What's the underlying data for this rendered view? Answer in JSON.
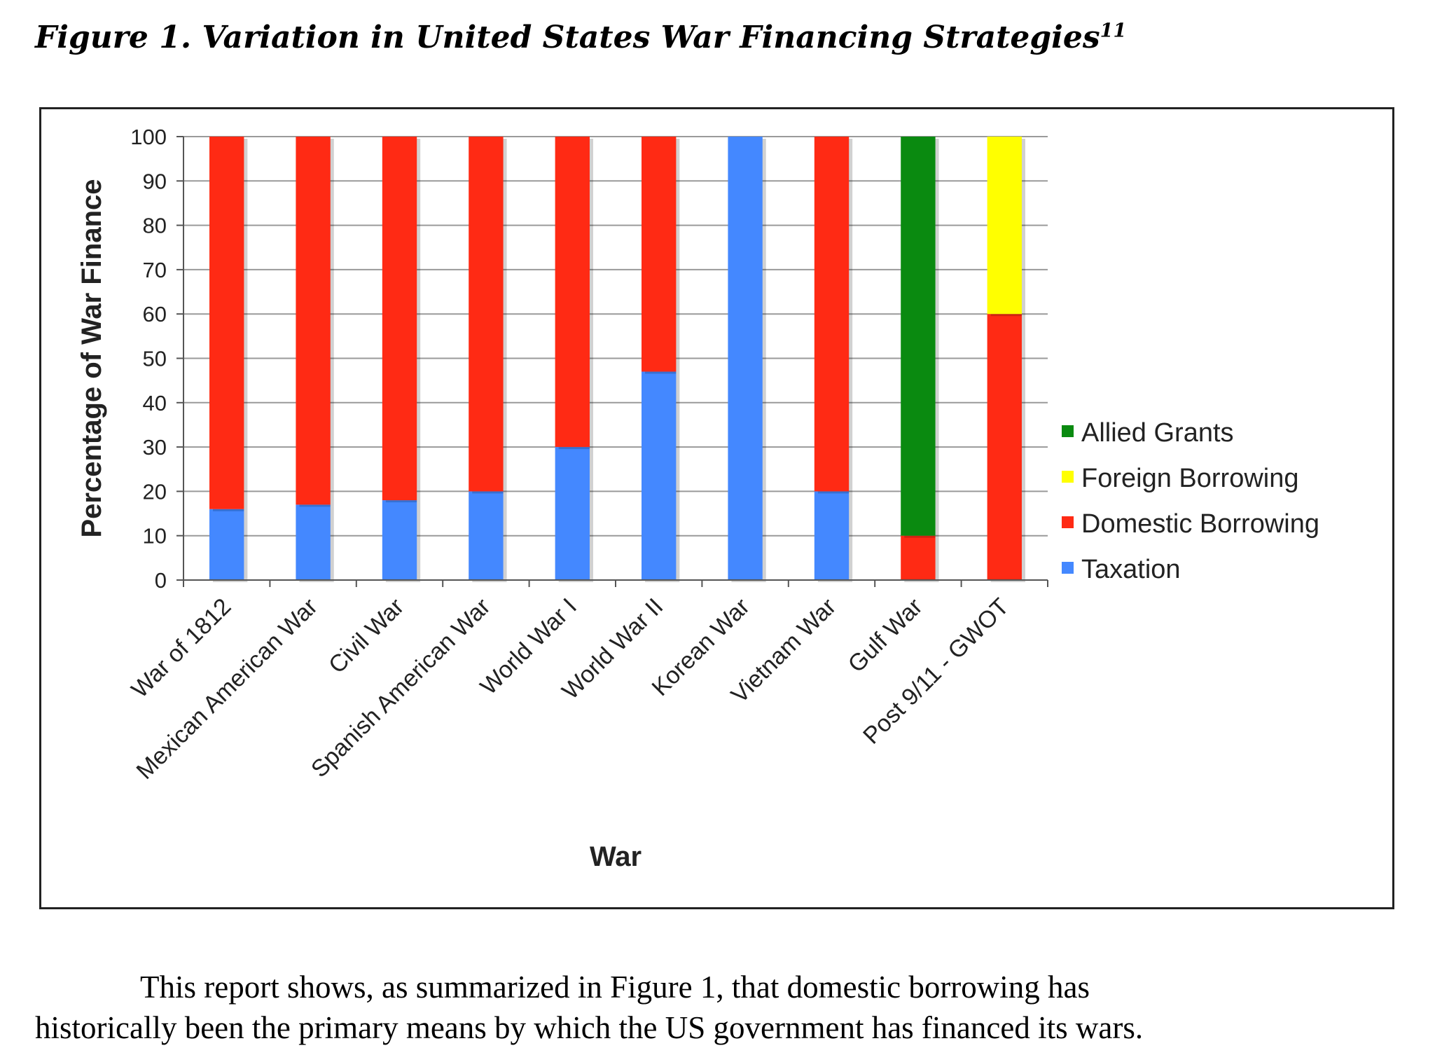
{
  "figure": {
    "title": "Figure 1. Variation in United States War Financing Strategies",
    "footnote": "11"
  },
  "chart_data": {
    "type": "bar",
    "stacked": true,
    "title": "",
    "xlabel": "War",
    "ylabel": "Percentage of War Finance",
    "ylim": [
      0,
      100
    ],
    "yticks": [
      0,
      10,
      20,
      30,
      40,
      50,
      60,
      70,
      80,
      90,
      100
    ],
    "grid": true,
    "legend_position": "right",
    "categories": [
      "War of 1812",
      "Mexican American War",
      "Civil War",
      "Spanish American War",
      "World War I",
      "World War II",
      "Korean War",
      "Vietnam War",
      "Gulf War",
      "Post 9/11 - GWOT"
    ],
    "series": [
      {
        "name": "Taxation",
        "color": "#4488ff",
        "values": [
          16,
          17,
          18,
          20,
          30,
          47,
          100,
          20,
          0,
          0
        ]
      },
      {
        "name": "Domestic Borrowing",
        "color": "#ff2a14",
        "values": [
          84,
          83,
          82,
          80,
          70,
          53,
          0,
          80,
          10,
          60
        ]
      },
      {
        "name": "Foreign Borrowing",
        "color": "#ffff00",
        "values": [
          0,
          0,
          0,
          0,
          0,
          0,
          0,
          0,
          0,
          40
        ]
      },
      {
        "name": "Allied Grants",
        "color": "#0a8a10",
        "values": [
          0,
          0,
          0,
          0,
          0,
          0,
          0,
          0,
          90,
          0
        ]
      }
    ],
    "legend_order": [
      "Allied Grants",
      "Foreign Borrowing",
      "Domestic Borrowing",
      "Taxation"
    ]
  },
  "body": {
    "line1": "This report shows, as summarized in Figure 1, that domestic borrowing has",
    "line2": "historically been the primary means by which the US government has financed its wars."
  }
}
